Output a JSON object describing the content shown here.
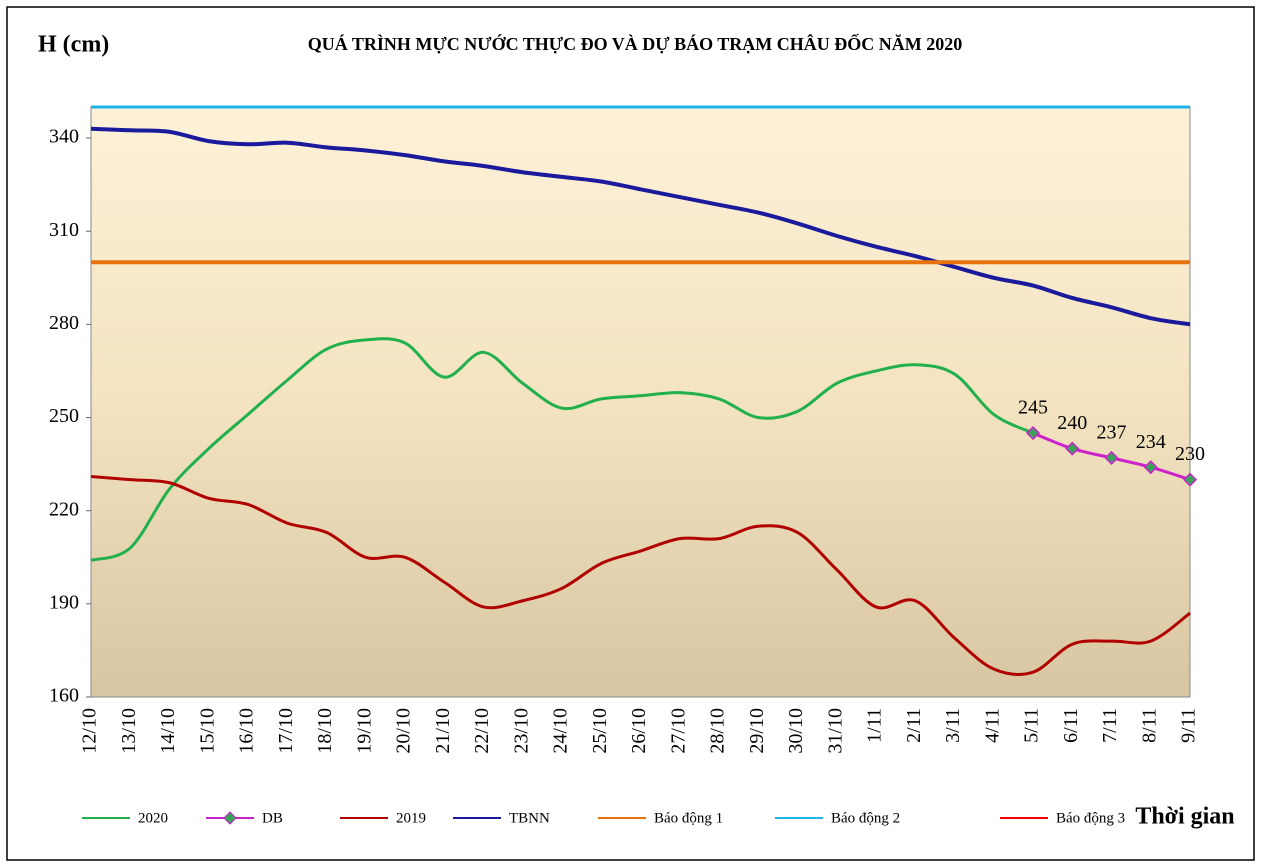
{
  "chart_data": {
    "type": "line",
    "title": "QUÁ TRÌNH MỰC NƯỚC THỰC ĐO VÀ DỰ BÁO TRẠM CHÂU ĐỐC NĂM 2020",
    "y_label": "H (cm)",
    "x_label": "Thời gian",
    "categories": [
      "12/10",
      "13/10",
      "14/10",
      "15/10",
      "16/10",
      "17/10",
      "18/10",
      "19/10",
      "20/10",
      "21/10",
      "22/10",
      "23/10",
      "24/10",
      "25/10",
      "26/10",
      "27/10",
      "28/10",
      "29/10",
      "30/10",
      "31/10",
      "1/11",
      "2/11",
      "3/11",
      "4/11",
      "5/11",
      "6/11",
      "7/11",
      "8/11",
      "9/11"
    ],
    "ylim": [
      160,
      350
    ],
    "yticks": [
      160,
      190,
      220,
      250,
      280,
      310,
      340
    ],
    "series": [
      {
        "name": "2020",
        "color": "#22b04c",
        "values": [
          204,
          208,
          227,
          240,
          251,
          262,
          272,
          275,
          274,
          263,
          271,
          261,
          253,
          256,
          257,
          258,
          256,
          250,
          252,
          261,
          265,
          267,
          264,
          251,
          245,
          null,
          null,
          null,
          null
        ]
      },
      {
        "name": "DB",
        "color": "#cc22cc",
        "marker": "diamond",
        "values": [
          null,
          null,
          null,
          null,
          null,
          null,
          null,
          null,
          null,
          null,
          null,
          null,
          null,
          null,
          null,
          null,
          null,
          null,
          null,
          null,
          null,
          null,
          null,
          null,
          245,
          240,
          237,
          234,
          230
        ]
      },
      {
        "name": "2019",
        "color": "#b00000",
        "values": [
          231,
          230,
          229,
          224,
          222,
          216,
          213,
          205,
          205,
          197,
          189,
          191,
          195,
          203,
          207,
          211,
          211,
          215,
          213,
          201,
          189,
          191,
          179,
          169,
          168,
          177,
          178,
          178,
          187
        ]
      },
      {
        "name": "TBNN",
        "color": "#1a1a9c",
        "values": [
          343,
          342.5,
          342,
          339,
          338,
          338.5,
          337,
          336,
          334.5,
          332.5,
          331,
          329,
          327.5,
          326,
          323.5,
          321,
          318.5,
          316,
          312.5,
          308.5,
          305,
          302,
          298.5,
          295,
          292.5,
          288.5,
          285.5,
          282,
          280
        ]
      },
      {
        "name": "Báo động 1",
        "color": "#e8720c",
        "values": [
          300,
          300,
          300,
          300,
          300,
          300,
          300,
          300,
          300,
          300,
          300,
          300,
          300,
          300,
          300,
          300,
          300,
          300,
          300,
          300,
          300,
          300,
          300,
          300,
          300,
          300,
          300,
          300,
          300
        ]
      },
      {
        "name": "Báo động 2",
        "color": "#1fb4e8",
        "values": [
          350,
          350,
          350,
          350,
          350,
          350,
          350,
          350,
          350,
          350,
          350,
          350,
          350,
          350,
          350,
          350,
          350,
          350,
          350,
          350,
          350,
          350,
          350,
          350,
          350,
          350,
          350,
          350,
          350
        ]
      },
      {
        "name": "Báo động 3",
        "color": "#ff0000",
        "values": [
          null,
          null,
          null,
          null,
          null,
          null,
          null,
          null,
          null,
          null,
          null,
          null,
          null,
          null,
          null,
          null,
          null,
          null,
          null,
          null,
          null,
          null,
          null,
          null,
          null,
          null,
          null,
          null,
          null
        ]
      }
    ]
  }
}
